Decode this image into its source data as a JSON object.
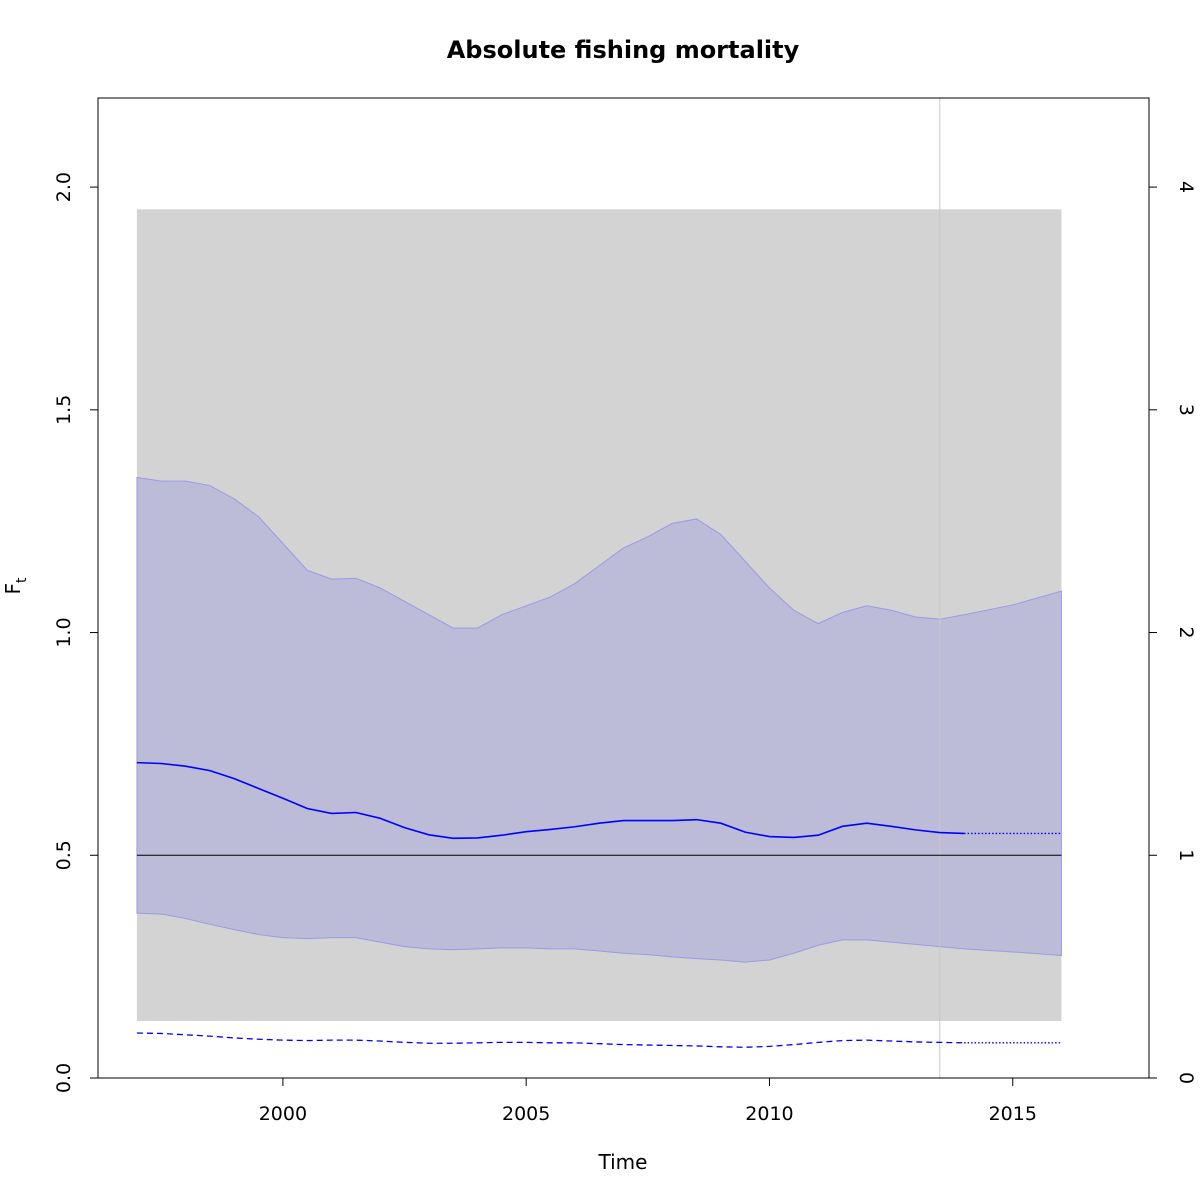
{
  "chart_data": {
    "type": "line",
    "title": "Absolute fishing mortality",
    "xlabel": "Time",
    "ylabel": "F",
    "ylabel_subscript": "t",
    "xlim": [
      1996.2,
      2017.8
    ],
    "ylim": [
      0,
      2.2
    ],
    "y2lim": [
      0,
      4.4
    ],
    "x_ticks": [
      2000,
      2005,
      2010,
      2015
    ],
    "y_ticks": [
      0.0,
      0.5,
      1.0,
      1.5,
      2.0
    ],
    "y_tick_labels": [
      "0.0",
      "0.5",
      "1.0",
      "1.5",
      "2.0"
    ],
    "y2_ticks": [
      0,
      1,
      2,
      3,
      4
    ],
    "y2_tick_labels": [
      "0",
      "1",
      "2",
      "3",
      "4"
    ],
    "grey_band": {
      "x": [
        1997.0,
        2016.0
      ],
      "y": [
        0.128,
        1.95
      ],
      "color": "#d3d3d3"
    },
    "reference_line": {
      "y": 0.5,
      "x": [
        1997.0,
        2016.0
      ],
      "color": "#000000"
    },
    "vertical_line": {
      "x": 2013.5,
      "color": "#c8c8c8"
    },
    "ci_band": {
      "color": "#bcbcd8",
      "x": [
        1997.0,
        1997.5,
        1998.0,
        1998.5,
        1999.0,
        1999.5,
        2000.0,
        2000.5,
        2001.0,
        2001.5,
        2002.0,
        2002.5,
        2003.0,
        2003.5,
        2004.0,
        2004.5,
        2005.0,
        2005.5,
        2006.0,
        2006.5,
        2007.0,
        2007.5,
        2008.0,
        2008.5,
        2009.0,
        2009.5,
        2010.0,
        2010.5,
        2011.0,
        2011.5,
        2012.0,
        2012.5,
        2013.0,
        2013.5,
        2014.0,
        2015.0,
        2016.0
      ],
      "upper": [
        1.348,
        1.34,
        1.34,
        1.33,
        1.3,
        1.26,
        1.2,
        1.14,
        1.12,
        1.122,
        1.1,
        1.07,
        1.04,
        1.01,
        1.01,
        1.04,
        1.06,
        1.08,
        1.11,
        1.15,
        1.19,
        1.215,
        1.245,
        1.255,
        1.22,
        1.16,
        1.1,
        1.05,
        1.02,
        1.045,
        1.06,
        1.05,
        1.035,
        1.03,
        1.04,
        1.062,
        1.093
      ],
      "lower": [
        0.37,
        0.368,
        0.358,
        0.345,
        0.333,
        0.322,
        0.315,
        0.313,
        0.315,
        0.315,
        0.305,
        0.295,
        0.29,
        0.288,
        0.29,
        0.292,
        0.292,
        0.29,
        0.29,
        0.285,
        0.28,
        0.277,
        0.272,
        0.268,
        0.265,
        0.26,
        0.265,
        0.28,
        0.298,
        0.31,
        0.31,
        0.305,
        0.3,
        0.295,
        0.29,
        0.283,
        0.275
      ]
    },
    "series": [
      {
        "style": "solid",
        "color": "#0000ff",
        "x": [
          1997.0,
          1997.5,
          1998.0,
          1998.5,
          1999.0,
          1999.5,
          2000.0,
          2000.5,
          2001.0,
          2001.5,
          2002.0,
          2002.5,
          2003.0,
          2003.5,
          2004.0,
          2004.5,
          2005.0,
          2005.5,
          2006.0,
          2006.5,
          2007.0,
          2007.5,
          2008.0,
          2008.5,
          2009.0,
          2009.5,
          2010.0,
          2010.5,
          2011.0,
          2011.5,
          2012.0,
          2012.5,
          2013.0,
          2013.5,
          2014.0
        ],
        "y": [
          0.708,
          0.706,
          0.7,
          0.69,
          0.672,
          0.65,
          0.628,
          0.605,
          0.594,
          0.596,
          0.583,
          0.562,
          0.546,
          0.538,
          0.539,
          0.545,
          0.553,
          0.558,
          0.564,
          0.572,
          0.578,
          0.578,
          0.578,
          0.58,
          0.572,
          0.552,
          0.542,
          0.54,
          0.545,
          0.565,
          0.572,
          0.565,
          0.557,
          0.551,
          0.549
        ]
      },
      {
        "style": "dotted",
        "color": "#0000ff",
        "x": [
          2014.0,
          2015.0,
          2016.0
        ],
        "y": [
          0.549,
          0.549,
          0.549
        ]
      },
      {
        "style": "dashed",
        "color": "#0000ff",
        "x": [
          1997.0,
          1997.5,
          1998.0,
          1998.5,
          1999.0,
          1999.5,
          2000.0,
          2000.5,
          2001.0,
          2001.5,
          2002.0,
          2002.5,
          2003.0,
          2003.5,
          2004.0,
          2004.5,
          2005.0,
          2005.5,
          2006.0,
          2006.5,
          2007.0,
          2007.5,
          2008.0,
          2008.5,
          2009.0,
          2009.5,
          2010.0,
          2010.5,
          2011.0,
          2011.5,
          2012.0,
          2012.5,
          2013.0,
          2013.5,
          2014.0
        ],
        "y": [
          0.101,
          0.1,
          0.097,
          0.094,
          0.09,
          0.087,
          0.085,
          0.084,
          0.085,
          0.085,
          0.083,
          0.08,
          0.078,
          0.078,
          0.079,
          0.08,
          0.08,
          0.079,
          0.079,
          0.077,
          0.075,
          0.074,
          0.073,
          0.072,
          0.07,
          0.069,
          0.071,
          0.075,
          0.08,
          0.084,
          0.085,
          0.083,
          0.081,
          0.08,
          0.079
        ]
      },
      {
        "style": "dotted",
        "color": "#0000ff",
        "x": [
          2014.0,
          2015.0,
          2016.0
        ],
        "y": [
          0.079,
          0.079,
          0.079
        ]
      }
    ]
  }
}
